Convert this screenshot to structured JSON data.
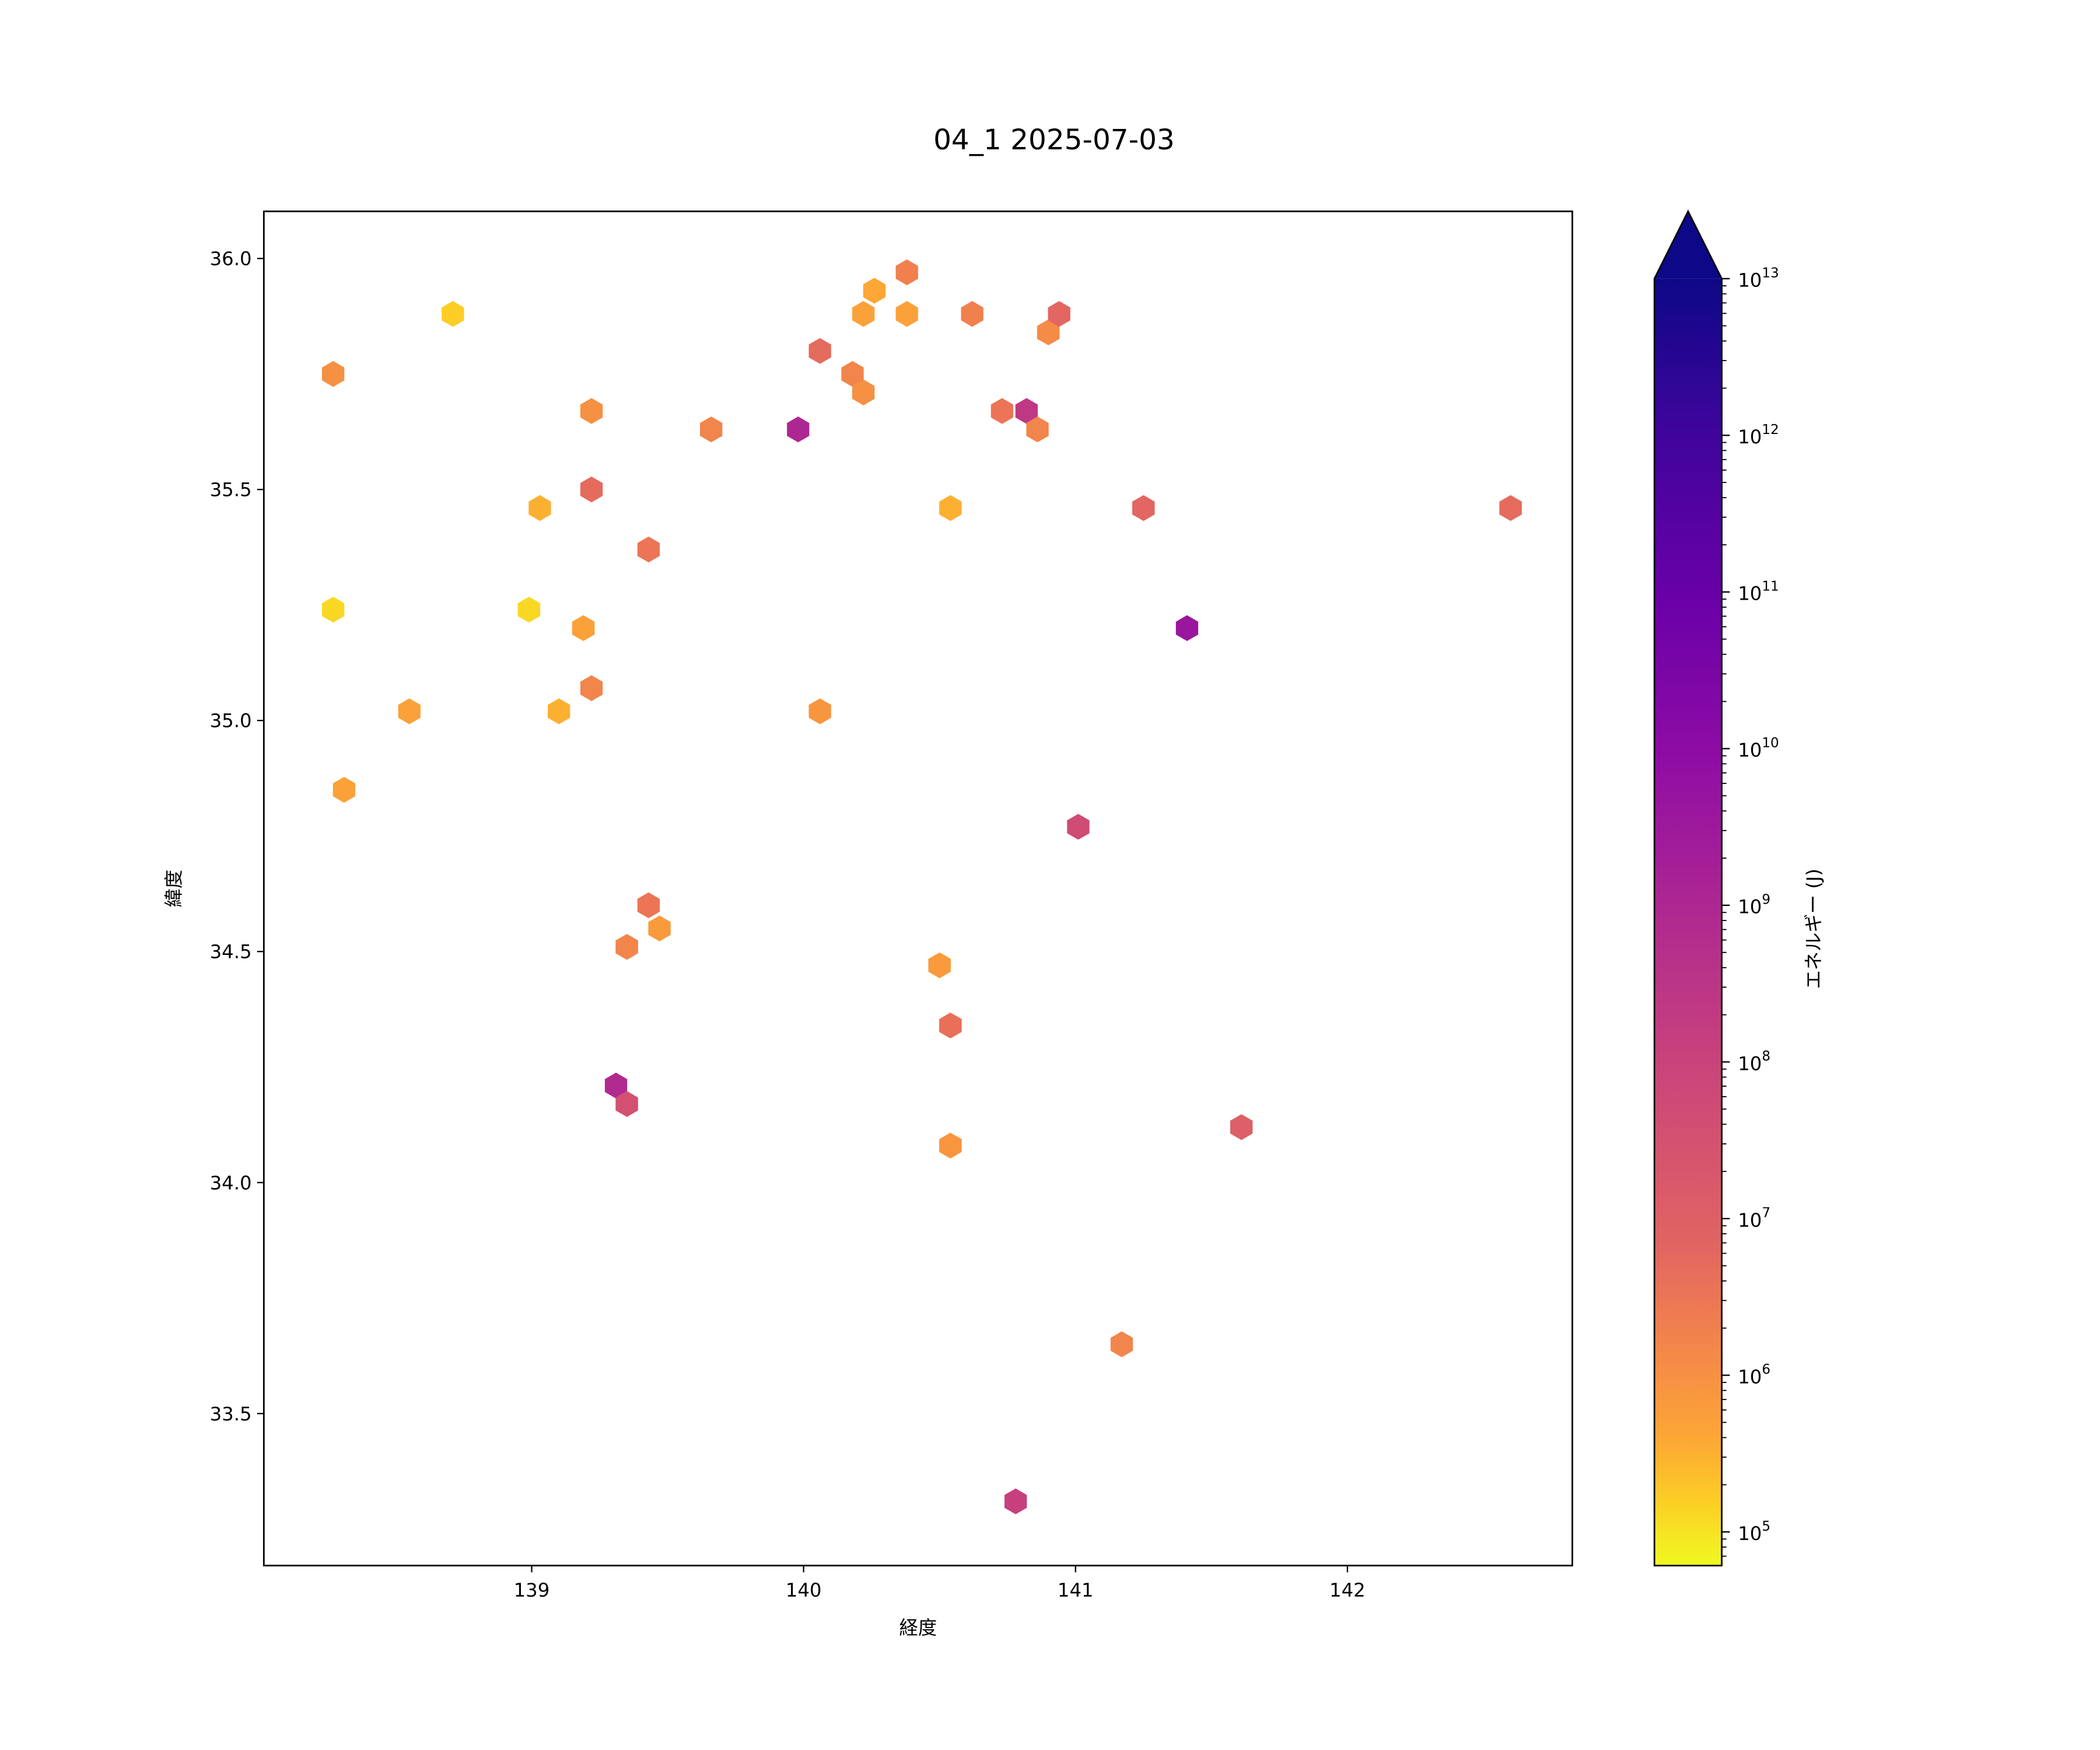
{
  "chart_data": {
    "type": "hexbin",
    "title": "04_1 2025-07-03",
    "xlabel": "経度",
    "ylabel": "緯度",
    "xlim": [
      138.015,
      142.827
    ],
    "ylim": [
      33.171,
      36.102
    ],
    "xticks": [
      139,
      140,
      141,
      142
    ],
    "yticks": [
      33.5,
      34.0,
      34.5,
      35.0,
      35.5,
      36.0
    ],
    "xtick_labels": [
      "139",
      "140",
      "141",
      "142"
    ],
    "ytick_labels": [
      "33.5",
      "34.0",
      "34.5",
      "35.0",
      "35.5",
      "36.0"
    ],
    "colorbar": {
      "label": "エネルギー (J)",
      "scale": "log",
      "colormap": "plasma",
      "extend": "max",
      "log10_range": [
        4.785,
        13
      ],
      "tick_exponents": [
        5,
        6,
        7,
        8,
        9,
        10,
        11,
        12,
        13
      ],
      "tick_base": "10"
    },
    "points": [
      {
        "lon": 138.71,
        "lat": 35.88,
        "log10_energy": 5.2
      },
      {
        "lon": 138.27,
        "lat": 35.75,
        "log10_energy": 6.0
      },
      {
        "lon": 139.22,
        "lat": 35.67,
        "log10_energy": 6.0
      },
      {
        "lon": 139.22,
        "lat": 35.5,
        "log10_energy": 6.7
      },
      {
        "lon": 139.03,
        "lat": 35.46,
        "log10_energy": 5.5
      },
      {
        "lon": 139.43,
        "lat": 35.37,
        "log10_energy": 6.5
      },
      {
        "lon": 138.27,
        "lat": 35.24,
        "log10_energy": 5.1
      },
      {
        "lon": 138.99,
        "lat": 35.24,
        "log10_energy": 5.1
      },
      {
        "lon": 139.19,
        "lat": 35.2,
        "log10_energy": 5.7
      },
      {
        "lon": 138.55,
        "lat": 35.02,
        "log10_energy": 5.7
      },
      {
        "lon": 139.1,
        "lat": 35.02,
        "log10_energy": 5.5
      },
      {
        "lon": 139.22,
        "lat": 35.07,
        "log10_energy": 6.2
      },
      {
        "lon": 138.31,
        "lat": 34.85,
        "log10_energy": 5.7
      },
      {
        "lon": 139.66,
        "lat": 35.63,
        "log10_energy": 6.2
      },
      {
        "lon": 139.98,
        "lat": 35.63,
        "log10_energy": 9.0
      },
      {
        "lon": 140.06,
        "lat": 35.8,
        "log10_energy": 6.7
      },
      {
        "lon": 140.18,
        "lat": 35.75,
        "log10_energy": 6.2
      },
      {
        "lon": 140.22,
        "lat": 35.71,
        "log10_energy": 6.0
      },
      {
        "lon": 140.22,
        "lat": 35.88,
        "log10_energy": 5.7
      },
      {
        "lon": 140.26,
        "lat": 35.93,
        "log10_energy": 5.6
      },
      {
        "lon": 140.38,
        "lat": 35.97,
        "log10_energy": 6.3
      },
      {
        "lon": 140.38,
        "lat": 35.88,
        "log10_energy": 5.7
      },
      {
        "lon": 140.62,
        "lat": 35.88,
        "log10_energy": 6.3
      },
      {
        "lon": 140.54,
        "lat": 35.46,
        "log10_energy": 5.5
      },
      {
        "lon": 140.73,
        "lat": 35.67,
        "log10_energy": 6.5
      },
      {
        "lon": 140.82,
        "lat": 35.67,
        "log10_energy": 8.4
      },
      {
        "lon": 140.86,
        "lat": 35.63,
        "log10_energy": 6.2
      },
      {
        "lon": 140.9,
        "lat": 35.84,
        "log10_energy": 6.1
      },
      {
        "lon": 140.94,
        "lat": 35.88,
        "log10_energy": 6.8
      },
      {
        "lon": 141.25,
        "lat": 35.46,
        "log10_energy": 6.8
      },
      {
        "lon": 141.41,
        "lat": 35.2,
        "log10_energy": 9.6
      },
      {
        "lon": 142.6,
        "lat": 35.46,
        "log10_energy": 6.7
      },
      {
        "lon": 140.06,
        "lat": 35.02,
        "log10_energy": 5.9
      },
      {
        "lon": 141.01,
        "lat": 34.77,
        "log10_energy": 7.7
      },
      {
        "lon": 139.43,
        "lat": 34.6,
        "log10_energy": 6.5
      },
      {
        "lon": 139.47,
        "lat": 34.55,
        "log10_energy": 5.8
      },
      {
        "lon": 139.35,
        "lat": 34.51,
        "log10_energy": 6.2
      },
      {
        "lon": 140.5,
        "lat": 34.47,
        "log10_energy": 5.8
      },
      {
        "lon": 140.54,
        "lat": 34.34,
        "log10_energy": 6.6
      },
      {
        "lon": 139.31,
        "lat": 34.21,
        "log10_energy": 8.9
      },
      {
        "lon": 139.35,
        "lat": 34.17,
        "log10_energy": 7.5
      },
      {
        "lon": 140.54,
        "lat": 34.08,
        "log10_energy": 5.9
      },
      {
        "lon": 141.61,
        "lat": 34.12,
        "log10_energy": 7.0
      },
      {
        "lon": 141.17,
        "lat": 33.65,
        "log10_energy": 6.2
      },
      {
        "lon": 140.78,
        "lat": 33.31,
        "log10_energy": 8.1
      }
    ]
  }
}
